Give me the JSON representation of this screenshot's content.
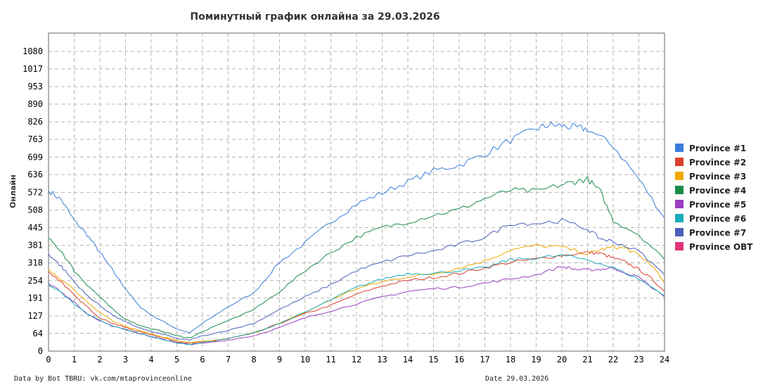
{
  "chart_data": {
    "type": "line",
    "title": "Поминутный график онлайна за 29.03.2026",
    "xlabel": "",
    "ylabel": "Онлайн",
    "xlim": [
      0,
      24
    ],
    "ylim": [
      0,
      1080
    ],
    "x_ticks": [
      "0",
      "1",
      "2",
      "3",
      "4",
      "5",
      "6",
      "7",
      "8",
      "9",
      "10",
      "11",
      "12",
      "13",
      "14",
      "15",
      "16",
      "17",
      "18",
      "19",
      "20",
      "21",
      "22",
      "23",
      "24"
    ],
    "y_ticks": [
      "0",
      "64",
      "127",
      "191",
      "254",
      "318",
      "381",
      "445",
      "508",
      "572",
      "636",
      "699",
      "763",
      "826",
      "890",
      "953",
      "1017",
      "1080"
    ],
    "grid": true,
    "legend_position": "right",
    "series": [
      {
        "name": "Province #1",
        "color": "#3a7ddb",
        "x": [
          0,
          0.5,
          1,
          1.5,
          2,
          2.5,
          3,
          3.5,
          4,
          4.5,
          5,
          5.5,
          6,
          7,
          8,
          9,
          10,
          11,
          12,
          13,
          14,
          15,
          16,
          17,
          18,
          19,
          19.5,
          20,
          20.5,
          21,
          22,
          23,
          24
        ],
        "y": [
          578,
          545,
          470,
          420,
          355,
          290,
          225,
          165,
          130,
          105,
          80,
          65,
          100,
          160,
          210,
          320,
          390,
          465,
          530,
          570,
          610,
          650,
          670,
          710,
          760,
          800,
          815,
          812,
          805,
          800,
          740,
          620,
          480
        ]
      },
      {
        "name": "Province #2",
        "color": "#d9412e",
        "x": [
          0,
          0.5,
          1,
          1.5,
          2,
          2.5,
          3,
          3.5,
          4,
          4.5,
          5,
          5.5,
          6,
          7,
          8,
          9,
          10,
          11,
          12,
          13,
          14,
          15,
          16,
          17,
          18,
          19,
          20,
          21,
          21.5,
          22,
          22.5,
          23,
          23.5,
          24
        ],
        "y": [
          285,
          250,
          200,
          160,
          120,
          100,
          85,
          70,
          60,
          48,
          35,
          28,
          32,
          45,
          65,
          100,
          135,
          165,
          205,
          235,
          255,
          265,
          280,
          300,
          320,
          332,
          345,
          355,
          352,
          335,
          320,
          295,
          260,
          215
        ]
      },
      {
        "name": "Province #3",
        "color": "#f0a800",
        "x": [
          0,
          0.5,
          1,
          1.5,
          2,
          2.5,
          3,
          3.5,
          4,
          4.5,
          5,
          5.5,
          6,
          7,
          8,
          9,
          10,
          11,
          12,
          13,
          14,
          15,
          16,
          17,
          18,
          19,
          20,
          21,
          21.5,
          22,
          22.5,
          23,
          23.5,
          24
        ],
        "y": [
          295,
          260,
          220,
          175,
          140,
          110,
          90,
          75,
          62,
          50,
          38,
          30,
          34,
          45,
          65,
          100,
          140,
          185,
          225,
          250,
          268,
          278,
          300,
          325,
          365,
          380,
          375,
          350,
          365,
          375,
          370,
          345,
          310,
          245
        ]
      },
      {
        "name": "Province #4",
        "color": "#1a8c4a",
        "x": [
          0,
          0.5,
          1,
          1.5,
          2,
          2.5,
          3,
          3.5,
          4,
          4.5,
          5,
          5.5,
          6,
          7,
          8,
          9,
          10,
          11,
          12,
          13,
          14,
          15,
          16,
          17,
          18,
          19,
          20,
          20.5,
          21,
          21.5,
          22,
          23,
          24
        ],
        "y": [
          405,
          360,
          290,
          240,
          195,
          150,
          115,
          95,
          80,
          70,
          55,
          48,
          70,
          110,
          150,
          215,
          290,
          355,
          410,
          445,
          465,
          490,
          510,
          550,
          580,
          575,
          600,
          610,
          620,
          575,
          470,
          420,
          330
        ]
      },
      {
        "name": "Province #5",
        "color": "#9b3dbf",
        "x": [
          0,
          0.5,
          1,
          1.5,
          2,
          2.5,
          3,
          3.5,
          4,
          4.5,
          5,
          5.5,
          6,
          7,
          8,
          9,
          10,
          11,
          12,
          13,
          14,
          15,
          16,
          17,
          18,
          19,
          20,
          20.5,
          21,
          21.5,
          22,
          23,
          24
        ],
        "y": [
          245,
          215,
          175,
          135,
          110,
          90,
          78,
          65,
          52,
          42,
          30,
          24,
          28,
          40,
          55,
          85,
          120,
          145,
          170,
          195,
          215,
          225,
          230,
          245,
          260,
          275,
          305,
          295,
          292,
          295,
          300,
          265,
          195
        ]
      },
      {
        "name": "Province #6",
        "color": "#1aaabb",
        "x": [
          0,
          0.5,
          1,
          1.5,
          2,
          2.5,
          3,
          3.5,
          4,
          4.5,
          5,
          5.5,
          6,
          7,
          8,
          9,
          10,
          11,
          12,
          13,
          14,
          15,
          16,
          17,
          18,
          19,
          20,
          21,
          22,
          23,
          24
        ],
        "y": [
          240,
          210,
          170,
          135,
          110,
          90,
          78,
          65,
          52,
          42,
          30,
          24,
          30,
          45,
          65,
          100,
          140,
          185,
          230,
          260,
          280,
          280,
          290,
          300,
          330,
          335,
          345,
          330,
          300,
          260,
          200
        ]
      },
      {
        "name": "Province #7",
        "color": "#4a5fb8",
        "x": [
          0,
          0.5,
          1,
          1.5,
          2,
          2.5,
          3,
          3.5,
          4,
          4.5,
          5,
          5.5,
          6,
          7,
          8,
          9,
          10,
          11,
          12,
          13,
          14,
          15,
          16,
          17,
          18,
          19,
          20,
          21,
          21.5,
          22,
          23,
          24
        ],
        "y": [
          350,
          305,
          250,
          200,
          165,
          130,
          105,
          85,
          70,
          60,
          45,
          40,
          55,
          75,
          100,
          150,
          195,
          240,
          290,
          320,
          345,
          360,
          385,
          410,
          460,
          460,
          470,
          440,
          405,
          395,
          360,
          275
        ]
      },
      {
        "name": "Province OBT",
        "color": "#e0357a",
        "x": [],
        "y": []
      }
    ]
  },
  "footer": {
    "left": "Data by Bot TBRU: vk.com/mtaprovinceonline",
    "right": "Date 29.03.2026"
  }
}
